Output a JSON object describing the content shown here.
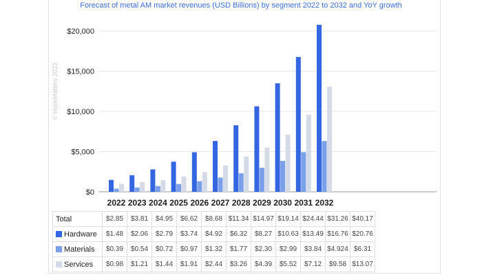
{
  "chart_data": {
    "type": "bar",
    "title": "Forecast of metal AM market revenues (USD Billions) by segment 2022 to 2032 and YoY growth",
    "categories": [
      "2022",
      "2023",
      "2024",
      "2025",
      "2026",
      "2027",
      "2028",
      "2029",
      "2030",
      "2031",
      "2032"
    ],
    "y_ticks": [
      "$0",
      "$5,000",
      "$10,000",
      "$15,000",
      "$20,000"
    ],
    "ylim": [
      0,
      21000
    ],
    "grid": true,
    "series": [
      {
        "name": "Hardware",
        "color": "#3366e0",
        "values": [
          1480,
          2060,
          2790,
          3740,
          4920,
          6320,
          8270,
          10630,
          13490,
          16760,
          20760
        ]
      },
      {
        "name": "Materials",
        "color": "#7aa0ea",
        "values": [
          390,
          540,
          720,
          970,
          1320,
          1770,
          2300,
          2990,
          3840,
          4924,
          6310
        ]
      },
      {
        "name": "Services",
        "color": "#d4dbe7",
        "values": [
          980,
          1210,
          1440,
          1910,
          2440,
          3260,
          4390,
          5520,
          7120,
          9580,
          13070
        ]
      }
    ],
    "table": {
      "rows": [
        {
          "label": "Total",
          "values": [
            "$2.85",
            "$3.81",
            "$4.95",
            "$6.62",
            "$8.68",
            "$11.34",
            "$14.97",
            "$19.14",
            "$24.44",
            "$31.26",
            "$40.17"
          ]
        },
        {
          "label": "Hardware",
          "values": [
            "$1.48",
            "$2.06",
            "$2.79",
            "$3.74",
            "$4.92",
            "$6.32",
            "$8.27",
            "$10.63",
            "$13.49",
            "$16.76",
            "$20.76"
          ]
        },
        {
          "label": "Materials",
          "values": [
            "$0.39",
            "$0.54",
            "$0.72",
            "$0.97",
            "$1.32",
            "$1.77",
            "$2.30",
            "$2.99",
            "$3.84",
            "$4.924",
            "$6.31"
          ]
        },
        {
          "label": "Services",
          "values": [
            "$0.98",
            "$1.21",
            "$1.44",
            "$1.91",
            "$2.44",
            "$3.26",
            "$4.39",
            "$5.52",
            "$7.12",
            "$9.58",
            "$13.07"
          ]
        }
      ]
    }
  },
  "watermark": "© VoxelMatters 2023"
}
